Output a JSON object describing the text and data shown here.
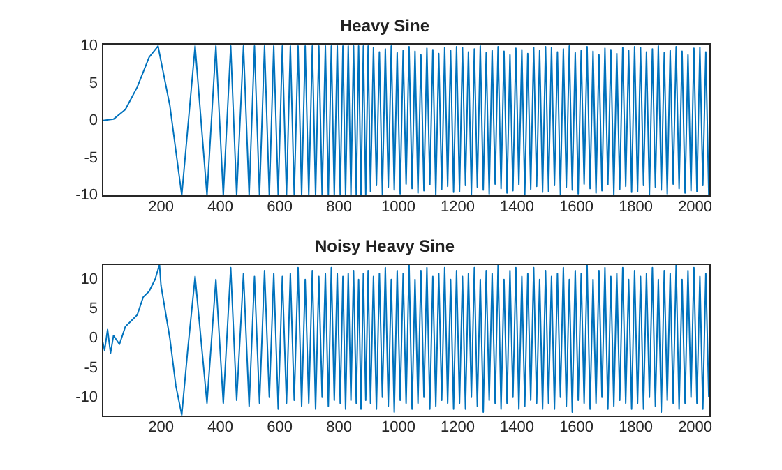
{
  "chart_data": [
    {
      "type": "line",
      "title": "Heavy Sine",
      "color": "#0072bd",
      "xlim": [
        1,
        2048
      ],
      "xticks": [
        200,
        400,
        600,
        800,
        1000,
        1200,
        1400,
        1600,
        1800,
        2000
      ],
      "ylim": [
        -10,
        10.3
      ],
      "yticks": [
        -10,
        -5,
        0,
        5,
        10
      ],
      "x": [
        1,
        40,
        80,
        120,
        160,
        190,
        230,
        270,
        315,
        355,
        385,
        410,
        435,
        455,
        478,
        497,
        515,
        532,
        549,
        565,
        580,
        595,
        609,
        623,
        636,
        649,
        662,
        674,
        686,
        698,
        710,
        721,
        732,
        743,
        754,
        764,
        774,
        784,
        794,
        804,
        813,
        822,
        831,
        840,
        849,
        858,
        866,
        874,
        882,
        890,
        898,
        906,
        916,
        926,
        936,
        946,
        956,
        966,
        976,
        986,
        996,
        1006,
        1016,
        1026,
        1036,
        1046,
        1056,
        1066,
        1076,
        1086,
        1096,
        1106,
        1116,
        1126,
        1136,
        1146,
        1156,
        1166,
        1176,
        1186,
        1196,
        1206,
        1216,
        1226,
        1236,
        1246,
        1256,
        1266,
        1276,
        1286,
        1296,
        1306,
        1316,
        1326,
        1336,
        1346,
        1356,
        1366,
        1376,
        1386,
        1396,
        1406,
        1416,
        1426,
        1436,
        1446,
        1456,
        1466,
        1476,
        1486,
        1496,
        1506,
        1516,
        1526,
        1536,
        1546,
        1556,
        1566,
        1576,
        1586,
        1596,
        1606,
        1616,
        1626,
        1636,
        1646,
        1656,
        1666,
        1676,
        1686,
        1696,
        1706,
        1716,
        1726,
        1736,
        1746,
        1756,
        1766,
        1776,
        1786,
        1796,
        1806,
        1816,
        1826,
        1836,
        1846,
        1856,
        1866,
        1876,
        1886,
        1896,
        1906,
        1916,
        1926,
        1936,
        1946,
        1956,
        1966,
        1976,
        1986,
        1996,
        2006,
        2016,
        2026,
        2036,
        2046
      ],
      "values": [
        0,
        0.2,
        1.5,
        4.5,
        8.5,
        10,
        2,
        -10,
        10,
        -10,
        10,
        -10,
        10,
        -10,
        10,
        -10,
        10,
        -10,
        10,
        -10,
        10,
        -10,
        10,
        -10,
        10,
        -10,
        10,
        -10,
        10,
        -10,
        10,
        -10,
        10,
        -10,
        10,
        -10,
        10,
        -10,
        10,
        -10,
        10,
        -10,
        10,
        -10,
        10,
        -10,
        10,
        -10,
        10,
        -10,
        10,
        -9.5,
        9.8,
        -8.7,
        9.2,
        -9.9,
        9.6,
        -8.9,
        10,
        -9.3,
        9.1,
        -9.8,
        9.4,
        -8.5,
        9.9,
        -9.1,
        9.3,
        -9.7,
        8.8,
        -9.4,
        9.7,
        -8.6,
        9.5,
        -9.9,
        9.0,
        -9.2,
        9.8,
        -8.8,
        9.4,
        -9.6,
        9.9,
        -9.5,
        9.8,
        -8.7,
        9.2,
        -9.9,
        9.6,
        -8.9,
        10,
        -9.3,
        9.1,
        -9.8,
        9.4,
        -8.5,
        9.9,
        -9.1,
        9.3,
        -9.7,
        8.8,
        -9.4,
        9.7,
        -8.6,
        9.5,
        -9.9,
        9.0,
        -9.2,
        9.8,
        -8.8,
        9.4,
        -9.6,
        9.9,
        -9.5,
        9.8,
        -8.7,
        9.2,
        -9.9,
        9.6,
        -8.9,
        10,
        -9.3,
        9.1,
        -9.8,
        9.4,
        -8.5,
        9.9,
        -9.1,
        9.3,
        -9.7,
        8.8,
        -9.4,
        9.7,
        -8.6,
        9.5,
        -9.9,
        9.0,
        -9.2,
        9.8,
        -8.8,
        9.4,
        -9.6,
        9.9,
        -9.5,
        9.8,
        -8.7,
        9.2,
        -9.9,
        9.6,
        -8.9,
        10,
        -9.3,
        9.1,
        -9.8,
        9.4,
        -8.5,
        9.9,
        -9.1,
        9.3,
        -9.7,
        8.8,
        -9.4,
        9.7,
        -9.5,
        9.8,
        -8.7,
        9.2,
        -9.9
      ]
    },
    {
      "type": "line",
      "title": "Noisy Heavy Sine",
      "color": "#0072bd",
      "xlim": [
        1,
        2048
      ],
      "xticks": [
        200,
        400,
        600,
        800,
        1000,
        1200,
        1400,
        1600,
        1800,
        2000
      ],
      "ylim": [
        -13.1,
        12.6
      ],
      "yticks": [
        -10,
        -5,
        0,
        5,
        10
      ],
      "x": [
        1,
        10,
        20,
        30,
        40,
        60,
        80,
        100,
        120,
        140,
        160,
        180,
        195,
        200,
        230,
        250,
        270,
        290,
        315,
        355,
        385,
        410,
        435,
        455,
        478,
        497,
        515,
        532,
        549,
        565,
        580,
        595,
        609,
        623,
        636,
        649,
        662,
        674,
        686,
        698,
        710,
        721,
        732,
        743,
        754,
        764,
        774,
        784,
        794,
        804,
        813,
        822,
        831,
        840,
        849,
        858,
        866,
        874,
        882,
        890,
        898,
        906,
        916,
        926,
        936,
        946,
        956,
        966,
        976,
        986,
        996,
        1006,
        1016,
        1026,
        1036,
        1046,
        1056,
        1066,
        1076,
        1086,
        1096,
        1106,
        1116,
        1126,
        1136,
        1146,
        1156,
        1166,
        1176,
        1186,
        1196,
        1206,
        1216,
        1226,
        1236,
        1246,
        1256,
        1266,
        1276,
        1286,
        1296,
        1306,
        1316,
        1326,
        1336,
        1346,
        1356,
        1366,
        1376,
        1386,
        1396,
        1406,
        1416,
        1426,
        1436,
        1446,
        1456,
        1466,
        1476,
        1486,
        1496,
        1506,
        1516,
        1526,
        1536,
        1546,
        1556,
        1566,
        1576,
        1586,
        1596,
        1606,
        1616,
        1626,
        1636,
        1646,
        1656,
        1666,
        1676,
        1686,
        1696,
        1706,
        1716,
        1726,
        1736,
        1746,
        1756,
        1766,
        1776,
        1786,
        1796,
        1806,
        1816,
        1826,
        1836,
        1846,
        1856,
        1866,
        1876,
        1886,
        1896,
        1906,
        1916,
        1926,
        1936,
        1946,
        1956,
        1966,
        1976,
        1986,
        1996,
        2006,
        2016,
        2026,
        2036,
        2046
      ],
      "values": [
        0,
        -2,
        1.5,
        -2.5,
        0.5,
        -1,
        2,
        3,
        4,
        7,
        8,
        10,
        12.5,
        9,
        0,
        -8,
        -13,
        -2,
        10.5,
        -11,
        10,
        -11,
        12,
        -10.5,
        11,
        -11.5,
        10.5,
        -11,
        11.5,
        -10,
        11,
        -12,
        10.5,
        -11,
        11,
        -10.5,
        12,
        -11.5,
        10,
        -11,
        11.5,
        -12,
        10.5,
        -10,
        11,
        -11.5,
        12,
        -10.5,
        11,
        -11,
        10.5,
        -12,
        11,
        -10.5,
        11.5,
        -11,
        10,
        -12,
        11,
        -10.5,
        11.5,
        -11,
        10.5,
        -12,
        11,
        -10,
        12,
        -11.5,
        10,
        -12.5,
        11.5,
        -10.5,
        11,
        -11,
        12.5,
        -12,
        10,
        -11,
        11.5,
        -10,
        12,
        -12,
        10.5,
        -11.5,
        11,
        -10.5,
        12,
        -11,
        10,
        -12,
        11.5,
        -11,
        10.5,
        -12,
        11,
        -10,
        12,
        -11.5,
        10,
        -12.5,
        11.5,
        -10.5,
        11,
        -11,
        12.5,
        -12,
        10,
        -11,
        11.5,
        -10,
        12,
        -12,
        10.5,
        -11.5,
        11,
        -10.5,
        12,
        -11,
        10,
        -12,
        11.5,
        -11,
        10.5,
        -12,
        11,
        -10,
        12,
        -11.5,
        10,
        -12.5,
        11.5,
        -10.5,
        11,
        -11,
        12.5,
        -12,
        10,
        -11,
        11.5,
        -10,
        12,
        -12,
        10.5,
        -11.5,
        11,
        -10.5,
        12,
        -11,
        10,
        -12,
        11.5,
        -11,
        10.5,
        -12,
        11,
        -10,
        12,
        -11.5,
        10,
        -12.5,
        11.5,
        -10.5,
        11,
        -11,
        12.5,
        -12,
        10,
        -11,
        11.5,
        -10,
        12,
        -11,
        10.5,
        -12,
        11,
        -10
      ]
    }
  ]
}
